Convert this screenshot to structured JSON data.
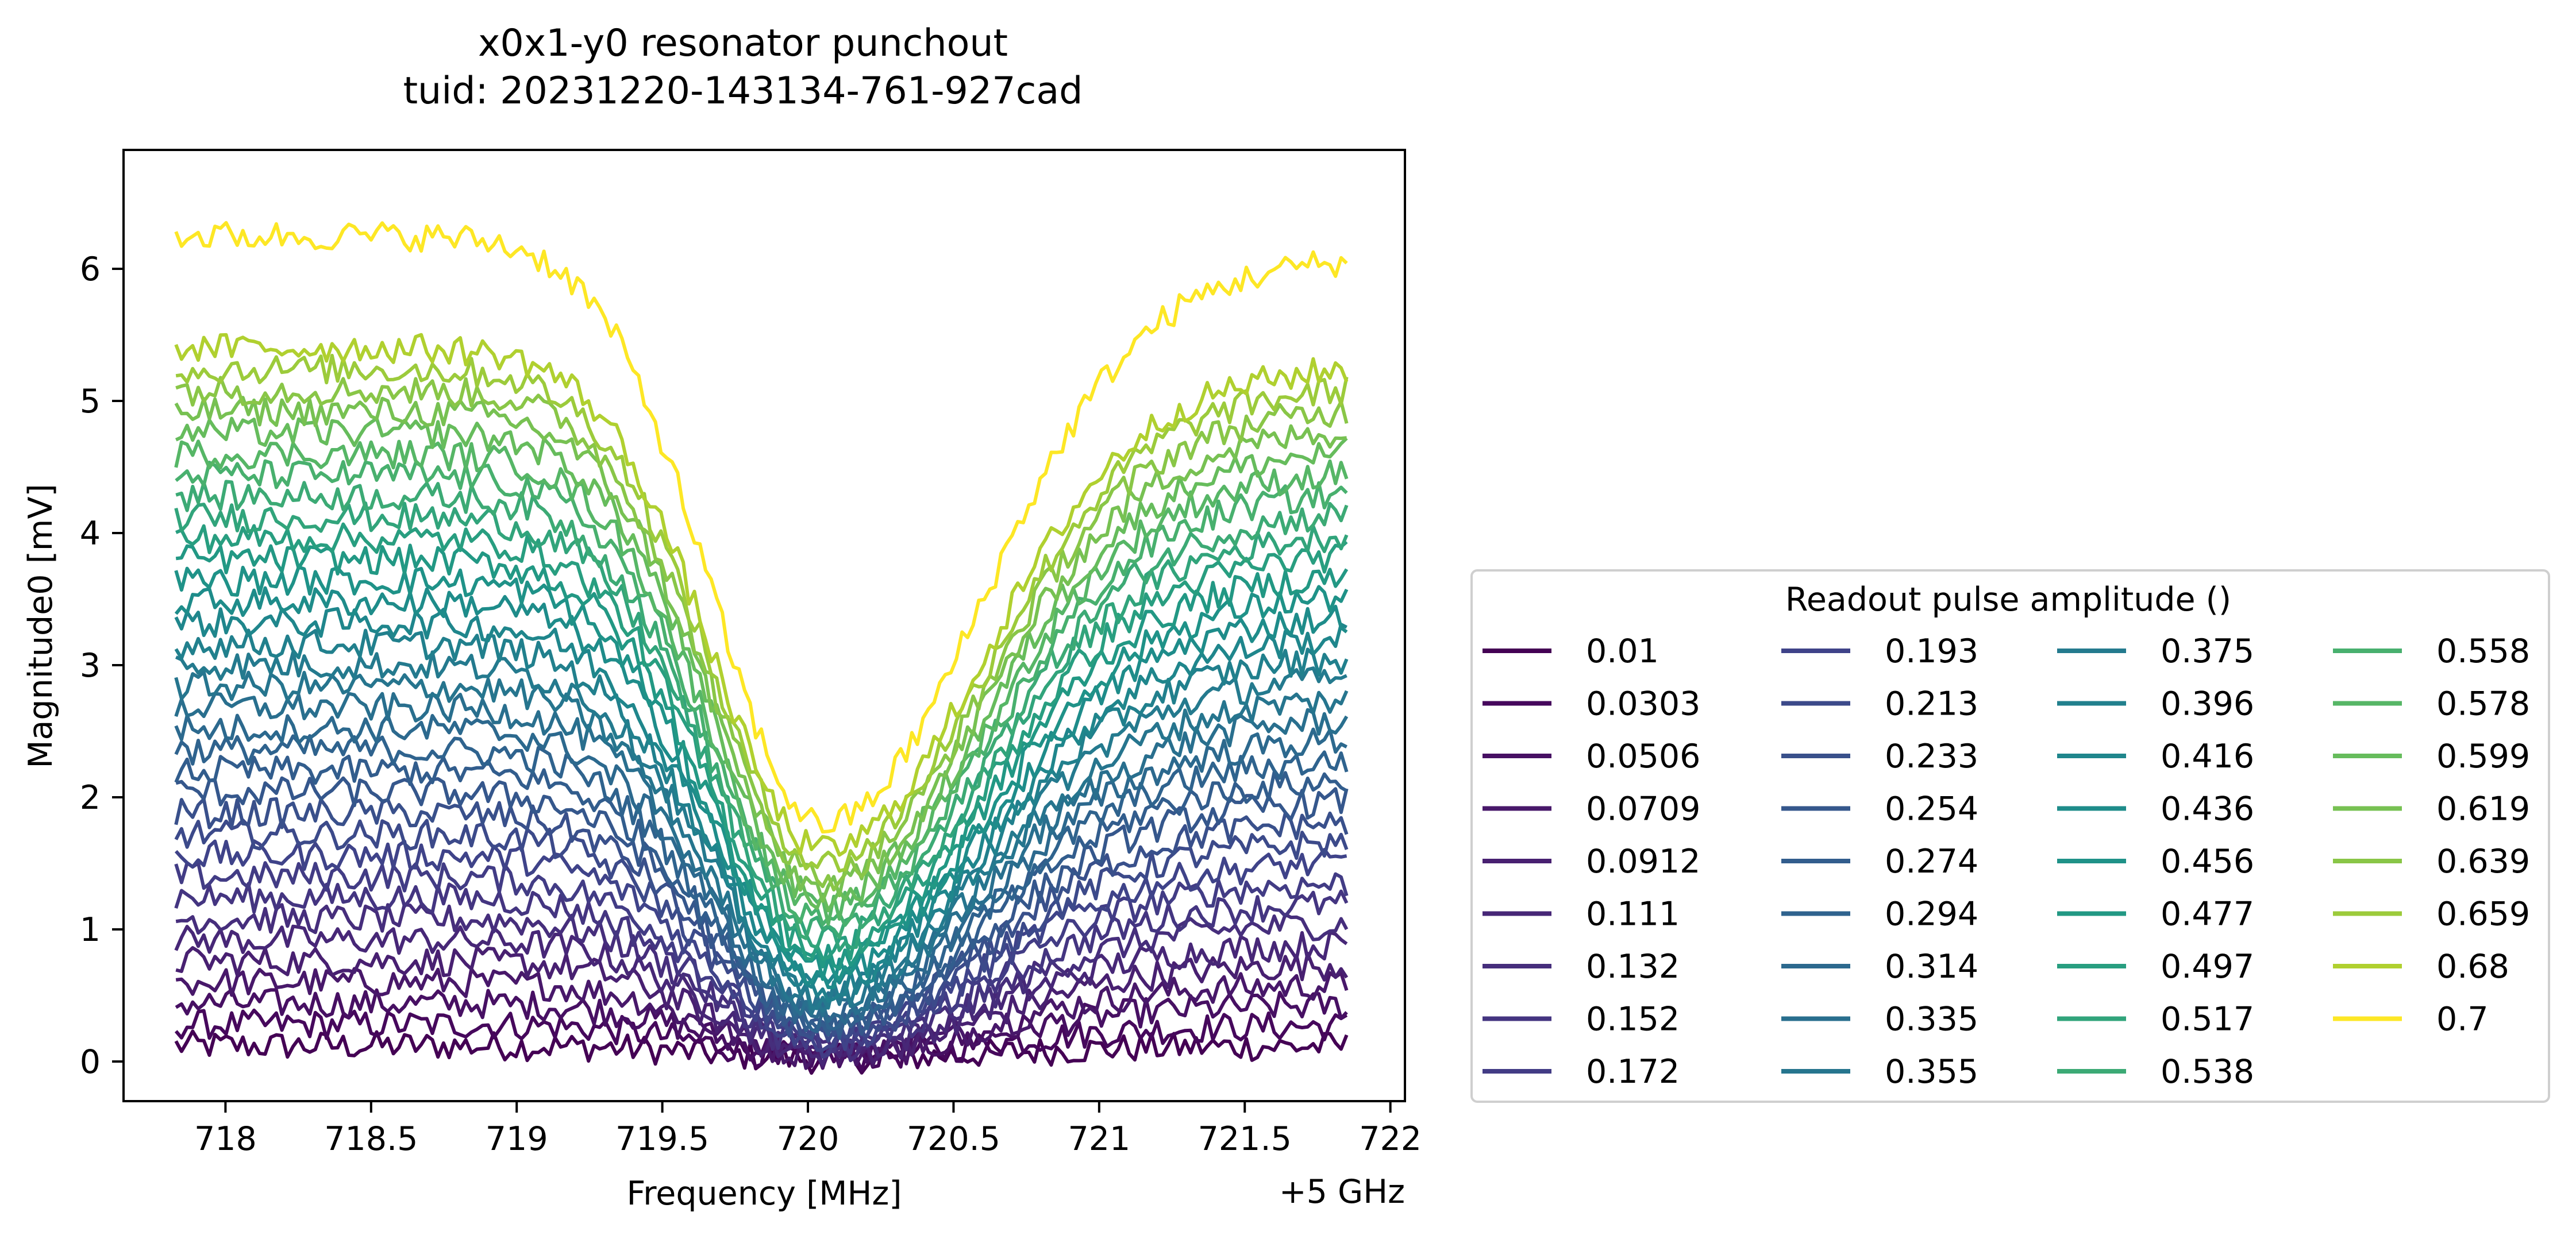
{
  "chart_data": {
    "type": "line",
    "title": "x0x1-y0 resonator punchout",
    "subtitle": "tuid: 20231220-143134-761-927cad",
    "xlabel": "Frequency [MHz]",
    "x_offset_label": "+5 GHz",
    "ylabel": "Magnitude0 [mV]",
    "xlim": [
      717.65,
      722.05
    ],
    "ylim": [
      -0.3,
      6.9
    ],
    "xticks": [
      "718",
      "718.5",
      "719",
      "719.5",
      "720",
      "720.5",
      "721",
      "721.5",
      "722"
    ],
    "yticks": [
      "0",
      "1",
      "2",
      "3",
      "4",
      "5",
      "6"
    ],
    "x_range": [
      717.83,
      721.85
    ],
    "grid": false,
    "legend": {
      "title": "Readout pulse amplitude ()",
      "placement": "right, outside plot",
      "columns": 4
    },
    "colormap": "viridis",
    "series": [
      {
        "name": "0.01",
        "color": "#440154",
        "baseline": 0.12,
        "dip": 0.02
      },
      {
        "name": "0.0303",
        "color": "#46085c",
        "baseline": 0.28,
        "dip": 0.03
      },
      {
        "name": "0.0506",
        "color": "#471063",
        "baseline": 0.44,
        "dip": 0.04
      },
      {
        "name": "0.0709",
        "color": "#48186a",
        "baseline": 0.6,
        "dip": 0.05
      },
      {
        "name": "0.0912",
        "color": "#482071",
        "baseline": 0.76,
        "dip": 0.06
      },
      {
        "name": "0.111",
        "color": "#472777",
        "baseline": 0.92,
        "dip": 0.08
      },
      {
        "name": "0.132",
        "color": "#462e7c",
        "baseline": 1.08,
        "dip": 0.1
      },
      {
        "name": "0.152",
        "color": "#443581",
        "baseline": 1.24,
        "dip": 0.12
      },
      {
        "name": "0.172",
        "color": "#423c85",
        "baseline": 1.4,
        "dip": 0.14
      },
      {
        "name": "0.193",
        "color": "#3f4389",
        "baseline": 1.56,
        "dip": 0.17
      },
      {
        "name": "0.213",
        "color": "#3c4a8a",
        "baseline": 1.72,
        "dip": 0.2
      },
      {
        "name": "0.233",
        "color": "#39508b",
        "baseline": 1.88,
        "dip": 0.23
      },
      {
        "name": "0.254",
        "color": "#35578c",
        "baseline": 2.04,
        "dip": 0.26
      },
      {
        "name": "0.274",
        "color": "#325d8d",
        "baseline": 2.2,
        "dip": 0.29
      },
      {
        "name": "0.294",
        "color": "#2f638e",
        "baseline": 2.36,
        "dip": 0.33
      },
      {
        "name": "0.314",
        "color": "#2c698e",
        "baseline": 2.52,
        "dip": 0.37
      },
      {
        "name": "0.335",
        "color": "#296f8e",
        "baseline": 2.68,
        "dip": 0.41
      },
      {
        "name": "0.355",
        "color": "#26758e",
        "baseline": 2.84,
        "dip": 0.45
      },
      {
        "name": "0.375",
        "color": "#247a8e",
        "baseline": 3.0,
        "dip": 0.5
      },
      {
        "name": "0.396",
        "color": "#21808d",
        "baseline": 3.16,
        "dip": 0.55
      },
      {
        "name": "0.416",
        "color": "#1f868c",
        "baseline": 3.32,
        "dip": 0.6
      },
      {
        "name": "0.436",
        "color": "#1e8c8a",
        "baseline": 3.48,
        "dip": 0.65
      },
      {
        "name": "0.456",
        "color": "#1f9288",
        "baseline": 3.64,
        "dip": 0.71
      },
      {
        "name": "0.477",
        "color": "#229884",
        "baseline": 3.8,
        "dip": 0.77
      },
      {
        "name": "0.497",
        "color": "#289e80",
        "baseline": 3.96,
        "dip": 0.84
      },
      {
        "name": "0.517",
        "color": "#31a47b",
        "baseline": 4.12,
        "dip": 0.91
      },
      {
        "name": "0.538",
        "color": "#3caa75",
        "baseline": 4.28,
        "dip": 0.98
      },
      {
        "name": "0.558",
        "color": "#48b06e",
        "baseline": 4.44,
        "dip": 1.06
      },
      {
        "name": "0.578",
        "color": "#56b666",
        "baseline": 4.6,
        "dip": 1.14
      },
      {
        "name": "0.599",
        "color": "#66bc5c",
        "baseline": 4.76,
        "dip": 1.22
      },
      {
        "name": "0.619",
        "color": "#77c152",
        "baseline": 4.92,
        "dip": 1.31
      },
      {
        "name": "0.639",
        "color": "#89c647",
        "baseline": 5.08,
        "dip": 1.4
      },
      {
        "name": "0.659",
        "color": "#9ccb3b",
        "baseline": 5.24,
        "dip": 1.5
      },
      {
        "name": "0.68",
        "color": "#b0d02f",
        "baseline": 5.4,
        "dip": 1.6
      },
      {
        "name": "0.7",
        "color": "#fde725",
        "baseline": 6.25,
        "dip": 1.8
      }
    ]
  }
}
